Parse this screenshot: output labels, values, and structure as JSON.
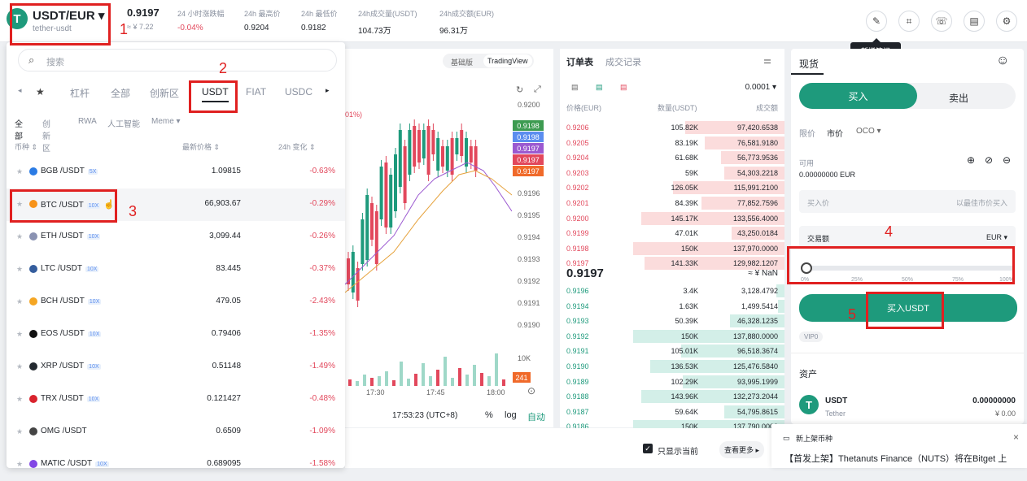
{
  "header": {
    "pair": "USDT/EUR",
    "pair_sub": "tether-usdt",
    "price": "0.9197",
    "price_sub": "≈ ¥ 7.22",
    "stats": [
      {
        "label": "24 小时涨跌幅",
        "value": "-0.04%",
        "color": "#e2485c"
      },
      {
        "label": "24h 最高价",
        "value": "0.9204"
      },
      {
        "label": "24h 最低价",
        "value": "0.9182"
      },
      {
        "label": "24h成交量(USDT)",
        "value": "104.73万"
      },
      {
        "label": "24h成交额(EUR)",
        "value": "96.31万"
      }
    ],
    "tooltip": "新增笔记"
  },
  "dropdown": {
    "search_placeholder": "搜索",
    "tabs": [
      "杠杆",
      "全部",
      "创新区",
      "USDT",
      "FIAT",
      "USDC"
    ],
    "subtabs": [
      "全部",
      "创新区",
      "RWA",
      "人工智能",
      "Meme ▾"
    ],
    "col_coin": "币种 ⇕",
    "col_price": "最新价格 ⇕",
    "col_change": "24h 变化 ⇕",
    "rows": [
      {
        "name": "BGB /USDT",
        "badge": "5X",
        "price": "1.09815",
        "change": "-0.63%",
        "color": "#2a7be4"
      },
      {
        "name": "BTC /USDT",
        "badge": "10X",
        "price": "66,903.67",
        "change": "-0.29%",
        "color": "#f7931a"
      },
      {
        "name": "ETH /USDT",
        "badge": "10X",
        "price": "3,099.44",
        "change": "-0.26%",
        "color": "#8a92b2"
      },
      {
        "name": "LTC /USDT",
        "badge": "10X",
        "price": "83.445",
        "change": "-0.37%",
        "color": "#345d9d"
      },
      {
        "name": "BCH /USDT",
        "badge": "10X",
        "price": "479.05",
        "change": "-2.43%",
        "color": "#f5a623"
      },
      {
        "name": "EOS /USDT",
        "badge": "10X",
        "price": "0.79406",
        "change": "-1.35%",
        "color": "#111"
      },
      {
        "name": "XRP /USDT",
        "badge": "10X",
        "price": "0.51148",
        "change": "-1.49%",
        "color": "#23292f"
      },
      {
        "name": "TRX /USDT",
        "badge": "10X",
        "price": "0.121427",
        "change": "-0.48%",
        "color": "#d9232d"
      },
      {
        "name": "OMG /USDT",
        "badge": "",
        "price": "0.6509",
        "change": "-1.09%",
        "color": "#444"
      },
      {
        "name": "MATIC /USDT",
        "badge": "10X",
        "price": "0.689095",
        "change": "-1.58%",
        "color": "#8247e5"
      }
    ]
  },
  "chart": {
    "modes": [
      "基础版",
      "TradingView"
    ],
    "yticks": [
      "0.9200",
      "0.9196",
      "0.9195",
      "0.9194",
      "0.9193",
      "0.9192",
      "0.9191",
      "0.9190"
    ],
    "tags": [
      {
        "v": "0.9198",
        "c": "#3d9b51"
      },
      {
        "v": "0.9198",
        "c": "#5b8def"
      },
      {
        "v": "0.9197",
        "c": "#9b59d0"
      },
      {
        "v": "0.9197",
        "c": "#e2485c"
      },
      {
        "v": "0.9197",
        "c": "#f06a2a"
      }
    ],
    "pct": "01%)",
    "vol_label": "10K",
    "vol_tag": "241",
    "xticks": [
      "17:30",
      "17:45",
      "18:00"
    ],
    "time": "17:53:23 (UTC+8)",
    "pct_btn": "%",
    "log_btn": "log",
    "auto_btn": "自动"
  },
  "orderbook": {
    "tabs": [
      "订单表",
      "成交记录"
    ],
    "precision": "0.0001 ▾",
    "col_price": "价格(EUR)",
    "col_qty": "数量(USDT)",
    "col_total": "成交额",
    "asks": [
      {
        "p": "0.9206",
        "q": "105.82K",
        "t": "97,420.6538",
        "w": 0.62
      },
      {
        "p": "0.9205",
        "q": "83.19K",
        "t": "76,581.9180",
        "w": 0.5
      },
      {
        "p": "0.9204",
        "q": "61.68K",
        "t": "56,773.9536",
        "w": 0.4
      },
      {
        "p": "0.9203",
        "q": "59K",
        "t": "54,303.2218",
        "w": 0.38
      },
      {
        "p": "0.9202",
        "q": "126.05K",
        "t": "115,991.2100",
        "w": 0.7
      },
      {
        "p": "0.9201",
        "q": "84.39K",
        "t": "77,852.7596",
        "w": 0.52
      },
      {
        "p": "0.9200",
        "q": "145.17K",
        "t": "133,556.4000",
        "w": 0.9
      },
      {
        "p": "0.9199",
        "q": "47.01K",
        "t": "43,250.0184",
        "w": 0.33
      },
      {
        "p": "0.9198",
        "q": "150K",
        "t": "137,970.0000",
        "w": 0.95
      },
      {
        "p": "0.9197",
        "q": "141.33K",
        "t": "129,982.1207",
        "w": 0.88
      }
    ],
    "last": "0.9197",
    "last_sub": "≈ ¥ NaN",
    "bids": [
      {
        "p": "0.9196",
        "q": "3.4K",
        "t": "3,128.4792",
        "w": 0.05
      },
      {
        "p": "0.9194",
        "q": "1.63K",
        "t": "1,499.5414",
        "w": 0.04
      },
      {
        "p": "0.9193",
        "q": "50.39K",
        "t": "46,328.1235",
        "w": 0.34
      },
      {
        "p": "0.9192",
        "q": "150K",
        "t": "137,880.0000",
        "w": 0.95
      },
      {
        "p": "0.9191",
        "q": "105.01K",
        "t": "96,518.3674",
        "w": 0.65
      },
      {
        "p": "0.9190",
        "q": "136.53K",
        "t": "125,476.5840",
        "w": 0.84
      },
      {
        "p": "0.9189",
        "q": "102.29K",
        "t": "93,995.1999",
        "w": 0.64
      },
      {
        "p": "0.9188",
        "q": "143.96K",
        "t": "132,273.2044",
        "w": 0.9
      },
      {
        "p": "0.9187",
        "q": "59.64K",
        "t": "54,795.8615",
        "w": 0.38
      },
      {
        "p": "0.9186",
        "q": "150K",
        "t": "137,790.0000",
        "w": 0.95
      }
    ]
  },
  "trade": {
    "title": "现货",
    "buy": "买入",
    "sell": "卖出",
    "types": [
      "限价",
      "市价",
      "OCO ▾"
    ],
    "avail_label": "可用",
    "avail_value": "0.00000000 EUR",
    "buy_price_ph": "买入价",
    "buy_price_hint": "以最佳市价买入",
    "amount_label": "交易额",
    "amount_unit": "EUR ▾",
    "slider_value": 0,
    "slider_ticks": [
      "0%",
      "25%",
      "50%",
      "75%",
      "100%"
    ],
    "submit": "买入USDT",
    "vip": "VIP0",
    "assets_title": "资产",
    "asset_name": "USDT",
    "asset_sub": "Tether",
    "asset_amt": "0.00000000",
    "asset_cny": "¥ 0.00"
  },
  "bottom": {
    "only_current": "只显示当前",
    "more": "查看更多 ▸"
  },
  "notice": {
    "title": "新上架币种",
    "text": "【首发上架】Thetanuts Finance（NUTS）将在Bitget 上"
  },
  "annotations": [
    "1",
    "2",
    "3",
    "4",
    "5"
  ]
}
